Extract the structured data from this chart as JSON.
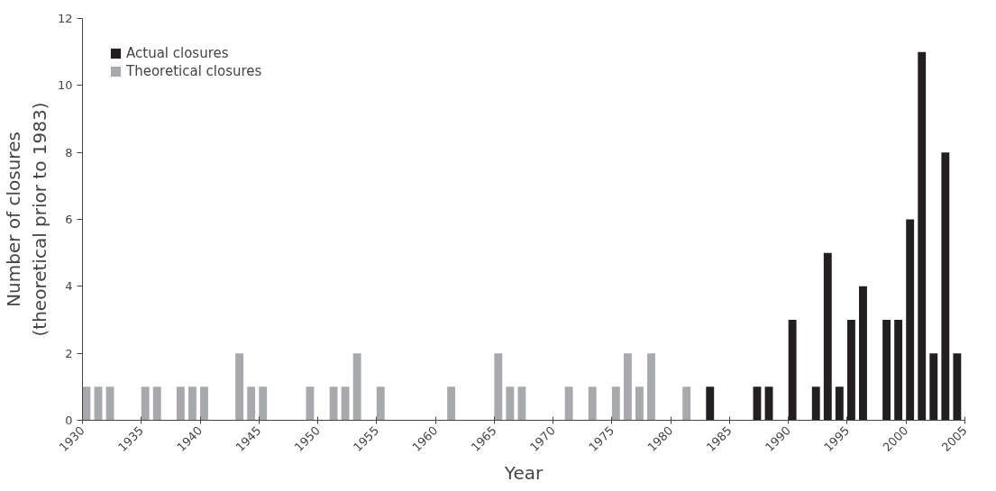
{
  "chart_data": {
    "type": "bar",
    "xlabel": "Year",
    "ylabel": "Number of closures\n(theoretical prior to 1983)",
    "series": [
      {
        "name": "Actual closures",
        "color": "#231f20",
        "x": [
          1983,
          1987,
          1988,
          1990,
          1992,
          1993,
          1994,
          1995,
          1996,
          1998,
          1999,
          2000,
          2001,
          2002,
          2003,
          2004
        ],
        "values": [
          1,
          1,
          1,
          3,
          1,
          5,
          1,
          3,
          4,
          3,
          3,
          6,
          11,
          2,
          8,
          2
        ]
      },
      {
        "name": "Theoretical closures",
        "color": "#a7a9ac",
        "x": [
          1930,
          1931,
          1932,
          1935,
          1936,
          1938,
          1939,
          1940,
          1943,
          1944,
          1945,
          1949,
          1951,
          1952,
          1953,
          1955,
          1961,
          1965,
          1966,
          1967,
          1971,
          1973,
          1975,
          1976,
          1977,
          1978,
          1981
        ],
        "values": [
          1,
          1,
          1,
          1,
          1,
          1,
          1,
          1,
          2,
          1,
          1,
          1,
          1,
          1,
          2,
          1,
          1,
          2,
          1,
          1,
          1,
          1,
          1,
          2,
          1,
          2,
          1
        ]
      }
    ],
    "xlim": [
      1930,
      2005
    ],
    "xticks": [
      1930,
      1935,
      1940,
      1945,
      1950,
      1955,
      1960,
      1965,
      1970,
      1975,
      1980,
      1985,
      1990,
      1995,
      2000,
      2005
    ],
    "ylim": [
      0,
      12
    ],
    "yticks": [
      0,
      2,
      4,
      6,
      8,
      10,
      12
    ],
    "grid": false,
    "legend": "top left"
  }
}
